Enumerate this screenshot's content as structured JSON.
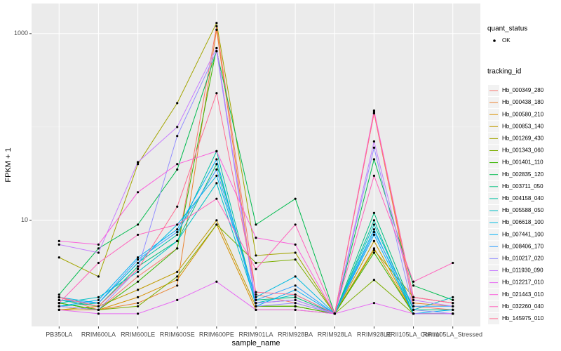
{
  "chart_data": {
    "type": "line",
    "x_label": "sample_name",
    "y_label": "FPKM + 1",
    "status_legend_title": "quant_status",
    "status_values": [
      "OK"
    ],
    "legend_title": "tracking_id",
    "log_y": true,
    "grid": true,
    "ylim": [
      0.73,
      2100
    ],
    "yticks": [
      10,
      1000
    ],
    "categories": [
      "PB350LA",
      "RRIM600LA",
      "RRIM600LE",
      "RRIM600SE",
      "RRIM600PE",
      "RRIM901LA",
      "RRIM928BA",
      "RRIM928LA",
      "RRIM928LE",
      "RRII105LA_Control",
      "RRII105LA_Stressed"
    ],
    "series": [
      {
        "name": "Hb_000349_280",
        "color": "#F8766D",
        "values": [
          1.5,
          1.1,
          2.5,
          5,
          1200,
          1.6,
          1.3,
          1,
          145,
          1.2,
          1.1
        ]
      },
      {
        "name": "Hb_000438_180",
        "color": "#EA8331",
        "values": [
          1.2,
          1.1,
          1.3,
          2,
          1100,
          1.2,
          1.2,
          1,
          140,
          1.3,
          1.2
        ]
      },
      {
        "name": "Hb_000580_210",
        "color": "#D89000",
        "values": [
          1.1,
          1.1,
          1.5,
          2.3,
          9,
          1.1,
          1.1,
          1,
          5,
          1,
          1
        ]
      },
      {
        "name": "Hb_000853_140",
        "color": "#C09B00",
        "values": [
          1.1,
          1.2,
          1.8,
          2.8,
          10,
          1.2,
          1.2,
          1,
          6,
          1,
          1
        ]
      },
      {
        "name": "Hb_001269_430",
        "color": "#A3A500",
        "values": [
          4,
          2.5,
          40,
          180,
          1300,
          4.2,
          4.5,
          1,
          4.8,
          1.5,
          1.3
        ]
      },
      {
        "name": "Hb_001343_060",
        "color": "#7CAE00",
        "values": [
          1.3,
          1.1,
          1.2,
          2.5,
          9,
          3.5,
          3.8,
          1,
          2.3,
          1,
          1
        ]
      },
      {
        "name": "Hb_001401_110",
        "color": "#39B600",
        "values": [
          1.3,
          1.1,
          2.2,
          5,
          700,
          1.2,
          1.2,
          1,
          4.5,
          1,
          1
        ]
      },
      {
        "name": "Hb_002835_120",
        "color": "#00BB4E",
        "values": [
          1.6,
          5,
          9,
          35,
          650,
          9,
          17,
          1,
          45,
          2,
          1.4
        ]
      },
      {
        "name": "Hb_003711_050",
        "color": "#00BF7D",
        "values": [
          1.4,
          1.2,
          3.2,
          6,
          40,
          1.4,
          1.5,
          1,
          12,
          1.1,
          1.1
        ]
      },
      {
        "name": "Hb_004158_040",
        "color": "#00C1A3",
        "values": [
          1.2,
          1.3,
          3.5,
          7,
          55,
          1.3,
          1.4,
          1,
          10,
          1,
          1
        ]
      },
      {
        "name": "Hb_005588_050",
        "color": "#00BFC4",
        "values": [
          1.3,
          1.5,
          2.8,
          6,
          25,
          1.3,
          1.6,
          1,
          9,
          1.1,
          1.5
        ]
      },
      {
        "name": "Hb_006618_100",
        "color": "#00BAE0",
        "values": [
          1.5,
          1.3,
          3.5,
          9,
          30,
          1.5,
          2.5,
          1,
          8,
          1,
          1
        ]
      },
      {
        "name": "Hb_007441_100",
        "color": "#00B0F6",
        "values": [
          1.2,
          1.4,
          4,
          8,
          45,
          1.2,
          1.8,
          1,
          7,
          1,
          1.1
        ]
      },
      {
        "name": "Hb_008406_170",
        "color": "#35A2FF",
        "values": [
          1.4,
          1.3,
          3.8,
          7.5,
          35,
          1.4,
          2,
          1,
          7.5,
          1.2,
          1.2
        ]
      },
      {
        "name": "Hb_010217_020",
        "color": "#9590FF",
        "values": [
          1.2,
          1.1,
          3,
          80,
          650,
          1.2,
          1.3,
          1,
          60,
          1.1,
          1
        ]
      },
      {
        "name": "Hb_011930_090",
        "color": "#C77CFF",
        "values": [
          5.5,
          4.5,
          42,
          100,
          700,
          1.3,
          1.4,
          1,
          70,
          1.4,
          1.2
        ]
      },
      {
        "name": "Hb_012217_010",
        "color": "#E76BF3",
        "values": [
          1.1,
          1,
          1,
          1.4,
          2.2,
          1.1,
          1.1,
          1,
          1.3,
          1,
          1
        ]
      },
      {
        "name": "Hb_021443_010",
        "color": "#FA62DB",
        "values": [
          6,
          5.5,
          20,
          40,
          55,
          6.5,
          5.5,
          1,
          150,
          1.5,
          1.3
        ]
      },
      {
        "name": "Hb_032260_040",
        "color": "#FF62BC",
        "values": [
          1.3,
          3.5,
          7,
          9,
          17,
          3,
          9,
          1,
          30,
          2.2,
          3.5
        ]
      },
      {
        "name": "Hb_145975_010",
        "color": "#FF6C91",
        "values": [
          1.5,
          1.2,
          3,
          14,
          230,
          1.7,
          1.6,
          1,
          140,
          1.5,
          1.3
        ]
      }
    ]
  }
}
